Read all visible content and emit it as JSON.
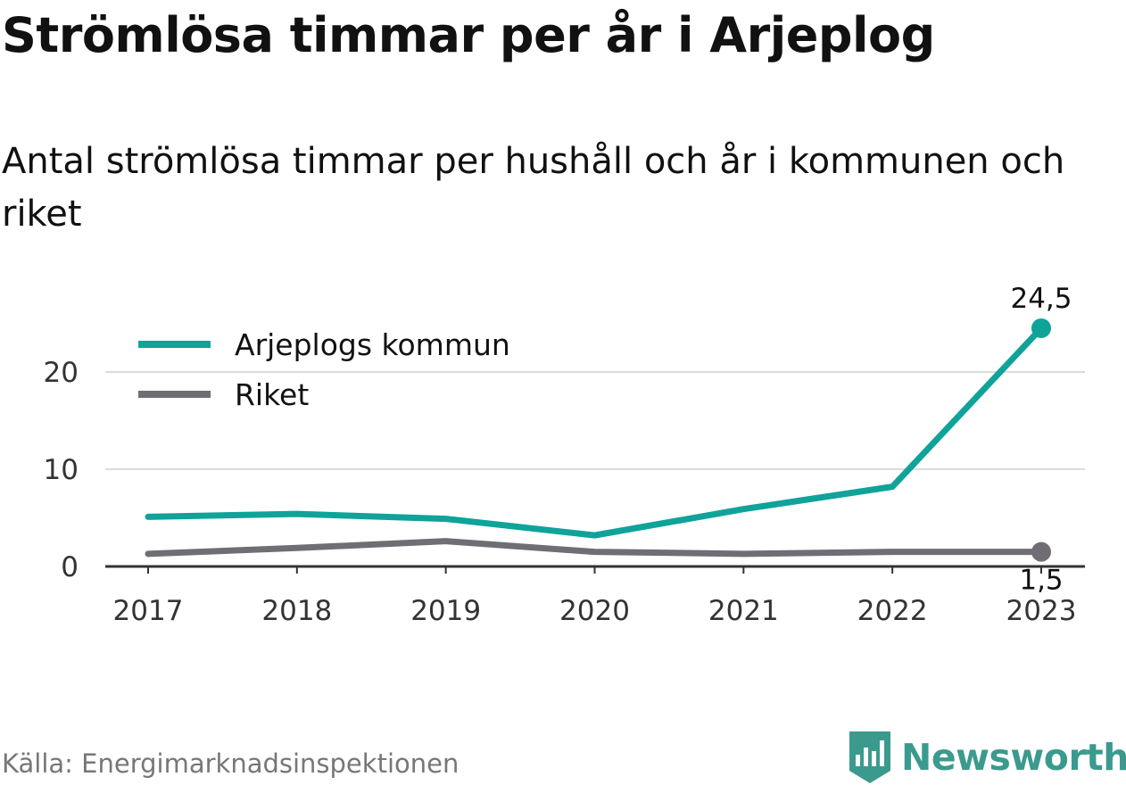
{
  "title": "Strömlösa timmar per år i Arjeplog",
  "subtitle": "Antal strömlösa timmar per hushåll och år i kommunen och riket",
  "source": "Källa: Energimarknadsinspektionen",
  "brand": {
    "name": "Newsworthy",
    "icon": "newsworthy-logo-icon",
    "color": "#3b9a8e"
  },
  "chart_data": {
    "type": "line",
    "x": [
      "2017",
      "2018",
      "2019",
      "2020",
      "2021",
      "2022",
      "2023"
    ],
    "ylim": [
      0,
      27
    ],
    "yticks": [
      0,
      10,
      20
    ],
    "grid": true,
    "legend_position": "top-left",
    "series": [
      {
        "name": "Arjeplogs kommun",
        "color": "#0fa39a",
        "values": [
          5.1,
          5.4,
          4.9,
          3.2,
          5.9,
          8.2,
          24.5
        ],
        "end_label": "24,5"
      },
      {
        "name": "Riket",
        "color": "#706d74",
        "values": [
          1.3,
          1.9,
          2.6,
          1.5,
          1.3,
          1.5,
          1.5
        ],
        "end_label": "1,5"
      }
    ]
  }
}
